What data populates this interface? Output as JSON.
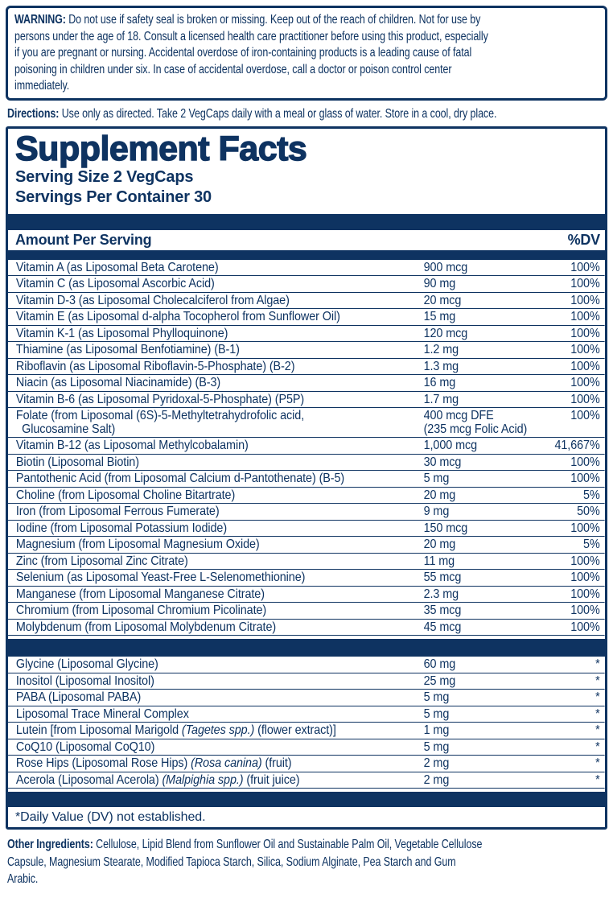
{
  "colors": {
    "navy": "#0e3361",
    "background": "#ffffff"
  },
  "warning": {
    "label": "WARNING:",
    "lines": [
      "Do not use if safety seal is broken or missing. Keep out of the reach of children. Not for use by",
      "persons under the age of 18. Consult a licensed health care practitioner before using this product, especially",
      "if you are pregnant or nursing. Accidental overdose of iron-containing products is a leading cause of fatal",
      "poisoning in children under six. In case of accidental overdose, call a doctor or poison control center",
      "immediately."
    ]
  },
  "directions": {
    "label": "Directions:",
    "text": "Use only as directed. Take 2 VegCaps daily with a meal or glass of water. Store in a cool, dry place."
  },
  "panel": {
    "title": "Supplement Facts",
    "serving_size": "Serving Size 2 VegCaps",
    "servings_per_container": "Servings Per Container 30",
    "header": {
      "amount_per_serving": "Amount Per Serving",
      "dv": "%DV"
    },
    "section1": [
      {
        "name": [
          {
            "t": "Vitamin A (as Liposomal Beta Carotene)"
          }
        ],
        "amount": "900 mcg",
        "dv": "100%"
      },
      {
        "name": [
          {
            "t": "Vitamin C (as Liposomal Ascorbic Acid)"
          }
        ],
        "amount": "90 mg",
        "dv": "100%"
      },
      {
        "name": [
          {
            "t": "Vitamin D-3 (as Liposomal Cholecalciferol from Algae)"
          }
        ],
        "amount": "20 mcg",
        "dv": "100%"
      },
      {
        "name": [
          {
            "t": "Vitamin E (as Liposomal d-alpha Tocopherol from Sunflower Oil)"
          }
        ],
        "amount": "15 mg",
        "dv": "100%"
      },
      {
        "name": [
          {
            "t": "Vitamin K-1 (as Liposomal Phylloquinone)"
          }
        ],
        "amount": "120 mcg",
        "dv": "100%"
      },
      {
        "name": [
          {
            "t": "Thiamine (as Liposomal Benfotiamine) (B-1)"
          }
        ],
        "amount": "1.2 mg",
        "dv": "100%"
      },
      {
        "name": [
          {
            "t": "Riboflavin (as Liposomal Riboflavin-5-Phosphate) (B-2)"
          }
        ],
        "amount": "1.3 mg",
        "dv": "100%"
      },
      {
        "name": [
          {
            "t": "Niacin (as Liposomal Niacinamide) (B-3)"
          }
        ],
        "amount": "16 mg",
        "dv": "100%"
      },
      {
        "name": [
          {
            "t": "Vitamin B-6 (as Liposomal Pyridoxal-5-Phosphate) (P5P)"
          }
        ],
        "amount": "1.7 mg",
        "dv": "100%"
      },
      {
        "name": [
          {
            "t": "Folate (from Liposomal (6S)-5-Methyltetrahydrofolic acid,"
          }
        ],
        "name2": "Glucosamine Salt)",
        "amount": "400 mcg DFE",
        "amount2": "(235 mcg Folic Acid)",
        "dv": "100%"
      },
      {
        "name": [
          {
            "t": "Vitamin B-12 (as Liposomal Methylcobalamin)"
          }
        ],
        "amount": "1,000 mcg",
        "dv": "41,667%"
      },
      {
        "name": [
          {
            "t": "Biotin (Liposomal Biotin)"
          }
        ],
        "amount": "30 mcg",
        "dv": "100%"
      },
      {
        "name": [
          {
            "t": "Pantothenic Acid (from Liposomal Calcium d-Pantothenate) (B-5)"
          }
        ],
        "amount": "5 mg",
        "dv": "100%"
      },
      {
        "name": [
          {
            "t": "Choline (from Liposomal Choline Bitartrate)"
          }
        ],
        "amount": "20 mg",
        "dv": "5%"
      },
      {
        "name": [
          {
            "t": "Iron (from Liposomal Ferrous Fumerate)"
          }
        ],
        "amount": "9 mg",
        "dv": "50%"
      },
      {
        "name": [
          {
            "t": "Iodine (from Liposomal Potassium Iodide)"
          }
        ],
        "amount": "150 mcg",
        "dv": "100%"
      },
      {
        "name": [
          {
            "t": "Magnesium (from Liposomal Magnesium Oxide)"
          }
        ],
        "amount": "20 mg",
        "dv": "5%"
      },
      {
        "name": [
          {
            "t": "Zinc (from Liposomal Zinc Citrate)"
          }
        ],
        "amount": "11 mg",
        "dv": "100%"
      },
      {
        "name": [
          {
            "t": "Selenium (as Liposomal Yeast-Free L-Selenomethionine)"
          }
        ],
        "amount": "55 mcg",
        "dv": "100%"
      },
      {
        "name": [
          {
            "t": "Manganese (from Liposomal Manganese Citrate)"
          }
        ],
        "amount": "2.3 mg",
        "dv": "100%"
      },
      {
        "name": [
          {
            "t": "Chromium (from Liposomal Chromium Picolinate)"
          }
        ],
        "amount": "35 mcg",
        "dv": "100%"
      },
      {
        "name": [
          {
            "t": "Molybdenum (from Liposomal Molybdenum Citrate)"
          }
        ],
        "amount": "45 mcg",
        "dv": "100%"
      }
    ],
    "section2": [
      {
        "name": [
          {
            "t": "Glycine (Liposomal Glycine)"
          }
        ],
        "amount": "60 mg",
        "dv": "*"
      },
      {
        "name": [
          {
            "t": "Inositol (Liposomal Inositol)"
          }
        ],
        "amount": "25 mg",
        "dv": "*"
      },
      {
        "name": [
          {
            "t": "PABA (Liposomal PABA)"
          }
        ],
        "amount": "5 mg",
        "dv": "*"
      },
      {
        "name": [
          {
            "t": "Liposomal Trace Mineral Complex"
          }
        ],
        "amount": "5 mg",
        "dv": "*"
      },
      {
        "name": [
          {
            "t": "Lutein [from Liposomal Marigold "
          },
          {
            "t": "(Tagetes spp.)",
            "i": true
          },
          {
            "t": " (flower extract)]"
          }
        ],
        "amount": "1 mg",
        "dv": "*"
      },
      {
        "name": [
          {
            "t": "CoQ10 (Liposomal CoQ10)"
          }
        ],
        "amount": "5 mg",
        "dv": "*"
      },
      {
        "name": [
          {
            "t": "Rose Hips (Liposomal Rose Hips) "
          },
          {
            "t": "(Rosa canina)",
            "i": true
          },
          {
            "t": " (fruit)"
          }
        ],
        "amount": "2 mg",
        "dv": "*"
      },
      {
        "name": [
          {
            "t": "Acerola (Liposomal Acerola) "
          },
          {
            "t": "(Malpighia spp.)",
            "i": true
          },
          {
            "t": " (fruit juice)"
          }
        ],
        "amount": "2 mg",
        "dv": "*"
      }
    ],
    "footnote": "*Daily Value (DV) not established."
  },
  "other_ingredients": {
    "label": "Other Ingredients:",
    "lines": [
      "Cellulose, Lipid Blend from Sunflower Oil and Sustainable Palm Oil, Vegetable Cellulose",
      "Capsule, Magnesium Stearate, Modified Tapioca Starch, Silica, Sodium Alginate, Pea Starch and Gum",
      "Arabic."
    ]
  }
}
